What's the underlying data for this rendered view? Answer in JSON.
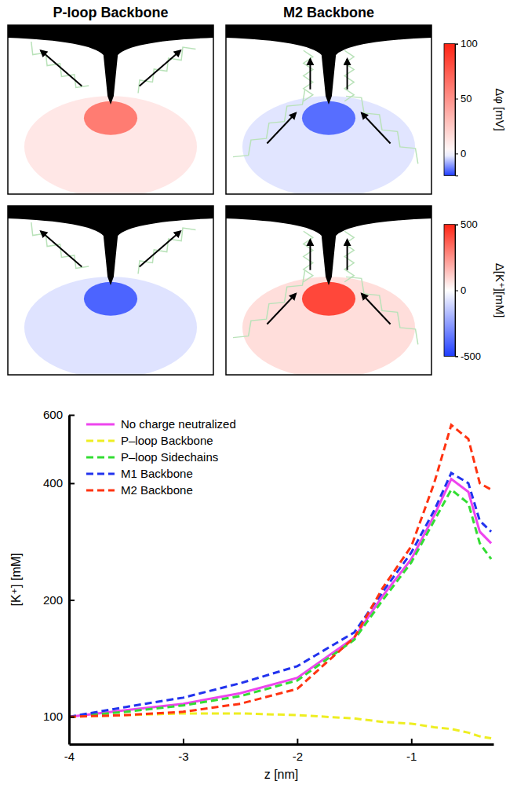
{
  "chart_data": [
    {
      "type": "heatmap",
      "titles": [
        "P-loop Backbone",
        "M2 Backbone"
      ],
      "values": [
        60,
        -15
      ],
      "colorbar": {
        "label": "Δφ [mV]",
        "range": [
          -20,
          100
        ],
        "ticks": [
          100,
          50,
          0
        ]
      }
    },
    {
      "type": "heatmap",
      "values": [
        -400,
        420
      ],
      "colorbar": {
        "label": "Δ[K⁺][mM]",
        "range": [
          -500,
          500
        ],
        "ticks": [
          500,
          0,
          -500
        ]
      }
    },
    {
      "type": "line",
      "log": "y",
      "legend": "upper left",
      "x_label": "z [nm]",
      "y_label": "[K⁺] [mM]",
      "xlim": [
        -4,
        -0.28
      ],
      "xticks": [
        -4,
        -3,
        -2,
        -1
      ],
      "ylim": [
        85,
        600
      ],
      "yticks": [
        100,
        200,
        400,
        600
      ],
      "x": [
        -4,
        -3.5,
        -3,
        -2.5,
        -2,
        -1.5,
        -1.25,
        -1,
        -0.8,
        -0.65,
        -0.5,
        -0.4,
        -0.3
      ],
      "series": [
        {
          "name": "No charge neutralized",
          "color": "#ee44ee",
          "line_style": "solid",
          "values": [
            100,
            104,
            108,
            115,
            126,
            160,
            205,
            255,
            330,
            410,
            380,
            300,
            280
          ]
        },
        {
          "name": "P–loop Backbone",
          "color": "#eeee22",
          "line_style": "dashed",
          "values": [
            100,
            101,
            102,
            102,
            101,
            99,
            97,
            96,
            94,
            93,
            91,
            89,
            88
          ]
        },
        {
          "name": "P–loop Sidechains",
          "color": "#33dd33",
          "line_style": "dashed",
          "values": [
            100,
            103,
            107,
            113,
            124,
            158,
            200,
            250,
            320,
            385,
            355,
            280,
            255
          ]
        },
        {
          "name": "M1 Backbone",
          "color": "#2233ee",
          "line_style": "dashed",
          "values": [
            100,
            106,
            112,
            122,
            135,
            165,
            210,
            265,
            340,
            425,
            400,
            320,
            300
          ]
        },
        {
          "name": "M2 Backbone",
          "color": "#ff3311",
          "line_style": "dashed",
          "values": [
            100,
            101,
            103,
            108,
            118,
            160,
            215,
            275,
            400,
            565,
            520,
            400,
            385
          ]
        }
      ]
    }
  ]
}
